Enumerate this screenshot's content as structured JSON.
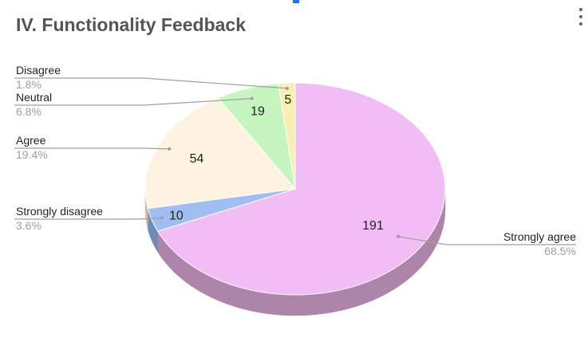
{
  "title": "IV. Functionality Feedback",
  "menu": {
    "icon": "more-vertical-icon"
  },
  "chart_data": {
    "type": "pie",
    "is_3d": true,
    "title": "IV. Functionality Feedback",
    "slices": [
      {
        "label": "Strongly agree",
        "value": 191,
        "percent": "68.5%",
        "color": "#f2bdf5",
        "side_color": "#ad84aa"
      },
      {
        "label": "Strongly disagree",
        "value": 10,
        "percent": "3.6%",
        "color": "#9fbff2",
        "side_color": "#6f8ab5"
      },
      {
        "label": "Agree",
        "value": 54,
        "percent": "19.4%",
        "color": "#fdf3e0",
        "side_color": "#c9bfa8"
      },
      {
        "label": "Neutral",
        "value": 19,
        "percent": "6.8%",
        "color": "#c6f5bf",
        "side_color": "#93c18c"
      },
      {
        "label": "Disagree",
        "value": 5,
        "percent": "1.8%",
        "color": "#f8f0b0",
        "side_color": "#c4bc80"
      }
    ],
    "legend": "callout labels"
  }
}
